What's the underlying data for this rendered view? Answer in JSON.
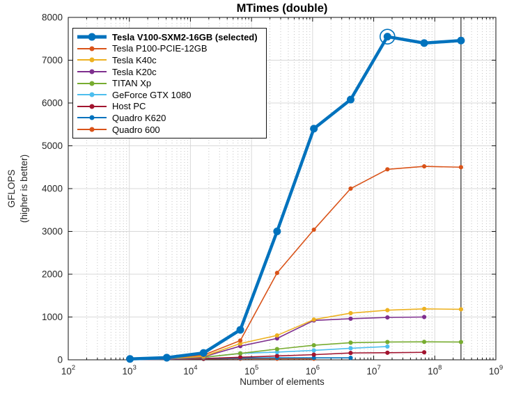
{
  "chart_data": {
    "type": "line",
    "title": "MTimes (double)",
    "xlabel": "Number of elements",
    "ylabel": "GFLOPS",
    "ylabel_sub": "(higher is better)",
    "x_scale": "log10",
    "xlim": [
      100,
      1000000000
    ],
    "ylim": [
      0,
      8000
    ],
    "xtick_exponents": [
      2,
      3,
      4,
      5,
      6,
      7,
      8,
      9
    ],
    "yticks": [
      0,
      1000,
      2000,
      3000,
      4000,
      5000,
      6000,
      7000,
      8000
    ],
    "grid": {
      "major": true,
      "minor_x_dotted": true
    },
    "legend_position": "northwest-inside",
    "axis_color": "#262626",
    "major_grid_color": "#d9d9d9",
    "minor_grid_color": "#c2c2c2",
    "x": [
      1024,
      4096,
      16384,
      65536,
      262144,
      1048576,
      4194304,
      16777216,
      67108864,
      268435456
    ],
    "series": [
      {
        "name": "Tesla V100-SXM2-16GB (selected)",
        "color": "#0072BD",
        "emphasis": true,
        "values": [
          20,
          50,
          160,
          700,
          3000,
          5400,
          6080,
          7550,
          7400,
          7460
        ]
      },
      {
        "name": "Tesla P100-PCIE-12GB",
        "color": "#D95319",
        "emphasis": false,
        "values": [
          15,
          40,
          110,
          450,
          2030,
          3040,
          4000,
          4450,
          4520,
          4500
        ]
      },
      {
        "name": "Tesla K40c",
        "color": "#EDB120",
        "emphasis": false,
        "values": [
          10,
          30,
          80,
          380,
          570,
          940,
          1090,
          1160,
          1190,
          1180
        ]
      },
      {
        "name": "Tesla K20c",
        "color": "#7E2F8E",
        "emphasis": false,
        "values": [
          10,
          25,
          70,
          320,
          500,
          920,
          960,
          990,
          1000
        ]
      },
      {
        "name": "TITAN Xp",
        "color": "#77AC30",
        "emphasis": false,
        "values": [
          10,
          25,
          60,
          150,
          250,
          340,
          400,
          415,
          420,
          415
        ]
      },
      {
        "name": "GeForce GTX 1080",
        "color": "#4DBEEE",
        "emphasis": false,
        "values": [
          10,
          20,
          55,
          150,
          180,
          220,
          270,
          310
        ]
      },
      {
        "name": "Host PC",
        "color": "#A2142F",
        "emphasis": false,
        "values": [
          5,
          15,
          30,
          60,
          90,
          120,
          160,
          165,
          175
        ]
      },
      {
        "name": "Quadro K620",
        "color": "#0072BD",
        "emphasis": false,
        "values": [
          5,
          10,
          25,
          40,
          45,
          45,
          45
        ]
      },
      {
        "name": "Quadro 600",
        "color": "#D95319",
        "emphasis": false,
        "values": [
          5,
          10,
          20,
          25,
          25,
          25
        ]
      }
    ],
    "annotations": {
      "highlight_ring": {
        "x": 16777216,
        "y": 7550,
        "color": "#0072BD"
      },
      "vertical_line_x": 268435456,
      "vertical_line_color": "#000000"
    }
  }
}
